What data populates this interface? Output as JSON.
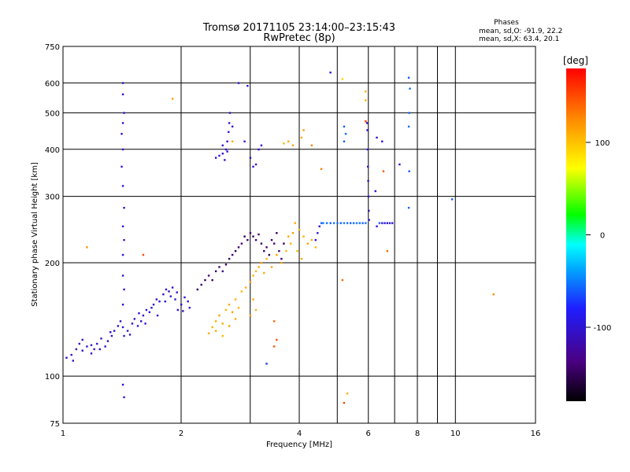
{
  "chart_data": {
    "type": "scatter",
    "title": "Tromsø 20171105 23:14:00–23:15:43",
    "subtitle": "RwPretec (8p)",
    "xlabel": "Frequency [MHz]",
    "ylabel": "Stationary phase Virtual Height [km]",
    "x_scale": "log",
    "y_scale": "log",
    "xlim": [
      1,
      16
    ],
    "ylim": [
      75,
      750
    ],
    "x_ticks": [
      1,
      2,
      4,
      6,
      8,
      10,
      16
    ],
    "x_tick_labels": [
      "1",
      "2",
      "4",
      "6",
      "8",
      "10",
      "16"
    ],
    "x_minor_grid": [
      3,
      5,
      7,
      9
    ],
    "y_ticks": [
      75,
      100,
      200,
      300,
      400,
      500,
      600,
      750
    ],
    "y_tick_labels": [
      "75",
      "100",
      "200",
      "300",
      "400",
      "500",
      "600",
      "750"
    ],
    "grid": true,
    "colorbar": {
      "label": "[deg]",
      "range": [
        -180,
        180
      ],
      "ticks": [
        100,
        0,
        -100
      ],
      "tick_labels": [
        "100",
        "0",
        "-100"
      ]
    },
    "stats": {
      "heading": "Phases",
      "line1": "mean, sd,O:  -91.9, 22.2",
      "line2": "mean, sd,X:  63.4, 20.1"
    },
    "series": [
      {
        "points": [
          [
            1.02,
            112,
            -100
          ],
          [
            1.05,
            114,
            -95
          ],
          [
            1.08,
            118,
            -110
          ],
          [
            1.1,
            122,
            -100
          ],
          [
            1.12,
            125,
            -105
          ],
          [
            1.15,
            120,
            -95
          ],
          [
            1.18,
            115,
            -100
          ],
          [
            1.2,
            118,
            -110
          ],
          [
            1.22,
            122,
            -100
          ],
          [
            1.25,
            126,
            -95
          ],
          [
            1.28,
            120,
            -100
          ],
          [
            1.3,
            124,
            -105
          ],
          [
            1.33,
            128,
            -100
          ],
          [
            1.35,
            132,
            -95
          ],
          [
            1.38,
            136,
            -100
          ],
          [
            1.4,
            140,
            -110
          ],
          [
            1.43,
            128,
            -100
          ],
          [
            1.46,
            132,
            -95
          ],
          [
            1.5,
            138,
            -105
          ],
          [
            1.52,
            142,
            -100
          ],
          [
            1.55,
            136,
            -95
          ],
          [
            1.58,
            140,
            -100
          ],
          [
            1.6,
            145,
            -110
          ],
          [
            1.63,
            150,
            -100
          ],
          [
            1.66,
            148,
            -95
          ],
          [
            1.7,
            155,
            -100
          ],
          [
            1.73,
            160,
            -105
          ],
          [
            1.76,
            158,
            -100
          ],
          [
            1.8,
            165,
            -95
          ],
          [
            1.83,
            170,
            -100
          ],
          [
            1.86,
            168,
            -110
          ],
          [
            1.9,
            172,
            -100
          ],
          [
            1.93,
            160,
            -95
          ],
          [
            1.96,
            150,
            -100
          ],
          [
            2.0,
            155,
            -105
          ],
          [
            2.04,
            162,
            -100
          ],
          [
            2.08,
            158,
            -95
          ],
          [
            1.06,
            110,
            -105
          ],
          [
            1.12,
            117,
            -95
          ],
          [
            1.18,
            121,
            -100
          ],
          [
            1.24,
            118,
            -105
          ],
          [
            1.32,
            131,
            -100
          ],
          [
            1.42,
            135,
            -95
          ],
          [
            1.48,
            129,
            -105
          ],
          [
            1.56,
            147,
            -100
          ],
          [
            1.62,
            138,
            -95
          ],
          [
            1.68,
            152,
            -100
          ],
          [
            1.74,
            145,
            -105
          ],
          [
            1.82,
            158,
            -100
          ],
          [
            1.88,
            163,
            -95
          ],
          [
            1.95,
            167,
            -100
          ],
          [
            2.02,
            149,
            -105
          ],
          [
            2.1,
            152,
            -95
          ]
        ]
      },
      {
        "points": [
          [
            1.42,
            600,
            -105
          ],
          [
            1.42,
            560,
            -100
          ],
          [
            1.43,
            500,
            -95
          ],
          [
            1.42,
            470,
            -100
          ],
          [
            1.41,
            440,
            -105
          ],
          [
            1.42,
            400,
            -100
          ],
          [
            1.41,
            360,
            -95
          ],
          [
            1.42,
            320,
            -100
          ],
          [
            1.43,
            280,
            -105
          ],
          [
            1.42,
            250,
            -100
          ],
          [
            1.43,
            230,
            -110
          ],
          [
            1.42,
            210,
            -100
          ],
          [
            1.42,
            185,
            -95
          ],
          [
            1.43,
            170,
            -100
          ],
          [
            1.42,
            155,
            -105
          ],
          [
            1.42,
            95,
            -100
          ],
          [
            1.43,
            88,
            -95
          ]
        ]
      },
      {
        "points": [
          [
            2.45,
            380,
            -100
          ],
          [
            2.5,
            385,
            -95
          ],
          [
            2.55,
            390,
            -100
          ],
          [
            2.6,
            400,
            -105
          ],
          [
            2.62,
            420,
            -100
          ],
          [
            2.64,
            445,
            -95
          ],
          [
            2.65,
            470,
            -100
          ],
          [
            2.66,
            500,
            -105
          ],
          [
            2.62,
            395,
            -100
          ],
          [
            2.58,
            375,
            -95
          ],
          [
            2.7,
            460,
            -100
          ],
          [
            2.55,
            410,
            -95
          ]
        ]
      },
      {
        "points": [
          [
            2.8,
            600,
            -100
          ],
          [
            2.95,
            590,
            -95
          ],
          [
            2.9,
            420,
            -100
          ],
          [
            3.0,
            380,
            -105
          ],
          [
            3.05,
            360,
            -100
          ],
          [
            3.1,
            365,
            -95
          ],
          [
            3.15,
            400,
            -100
          ],
          [
            3.2,
            410,
            -105
          ]
        ]
      },
      {
        "points": [
          [
            2.2,
            170,
            -150
          ],
          [
            2.25,
            175,
            -145
          ],
          [
            2.3,
            180,
            -150
          ],
          [
            2.35,
            185,
            -140
          ],
          [
            2.4,
            180,
            -145
          ],
          [
            2.45,
            190,
            -150
          ],
          [
            2.5,
            195,
            -145
          ],
          [
            2.55,
            190,
            -140
          ],
          [
            2.6,
            198,
            -150
          ],
          [
            2.65,
            205,
            -145
          ],
          [
            2.7,
            210,
            -140
          ],
          [
            2.75,
            215,
            -150
          ],
          [
            2.8,
            220,
            -145
          ],
          [
            2.85,
            225,
            -140
          ],
          [
            2.9,
            235,
            -150
          ],
          [
            2.95,
            230,
            -145
          ],
          [
            3.0,
            240,
            -140
          ],
          [
            3.05,
            235,
            -150
          ],
          [
            3.1,
            230,
            -145
          ],
          [
            3.15,
            238,
            -140
          ],
          [
            3.2,
            225,
            -150
          ],
          [
            3.25,
            215,
            -145
          ],
          [
            3.3,
            220,
            -140
          ],
          [
            3.35,
            210,
            -150
          ],
          [
            3.4,
            230,
            -145
          ],
          [
            3.45,
            225,
            -140
          ],
          [
            3.5,
            240,
            -150
          ],
          [
            3.55,
            215,
            -145
          ],
          [
            3.6,
            205,
            -140
          ],
          [
            3.65,
            225,
            -150
          ]
        ]
      },
      {
        "points": [
          [
            2.35,
            130,
            110
          ],
          [
            2.4,
            135,
            105
          ],
          [
            2.45,
            140,
            110
          ],
          [
            2.5,
            145,
            115
          ],
          [
            2.55,
            138,
            110
          ],
          [
            2.6,
            150,
            105
          ],
          [
            2.65,
            155,
            110
          ],
          [
            2.7,
            148,
            115
          ],
          [
            2.75,
            142,
            110
          ],
          [
            2.8,
            152,
            105
          ],
          [
            2.45,
            132,
            110
          ],
          [
            2.55,
            128,
            105
          ],
          [
            2.65,
            136,
            115
          ],
          [
            2.75,
            160,
            110
          ],
          [
            2.85,
            168,
            105
          ],
          [
            2.92,
            172,
            110
          ],
          [
            3.0,
            178,
            115
          ],
          [
            3.05,
            185,
            110
          ],
          [
            3.1,
            190,
            105
          ],
          [
            3.15,
            195,
            110
          ],
          [
            3.2,
            200,
            115
          ],
          [
            3.25,
            188,
            110
          ],
          [
            3.3,
            205,
            105
          ],
          [
            3.4,
            195,
            110
          ],
          [
            3.5,
            210,
            115
          ],
          [
            3.6,
            200,
            110
          ],
          [
            3.7,
            215,
            105
          ],
          [
            3.8,
            225,
            110
          ],
          [
            3.85,
            240,
            115
          ],
          [
            3.9,
            255,
            110
          ],
          [
            4.0,
            245,
            105
          ],
          [
            4.1,
            235,
            110
          ],
          [
            4.2,
            225,
            115
          ],
          [
            4.3,
            230,
            110
          ],
          [
            4.4,
            220,
            105
          ],
          [
            3.75,
            235,
            110
          ],
          [
            3.95,
            215,
            105
          ],
          [
            4.05,
            205,
            110
          ],
          [
            3.1,
            150,
            105
          ],
          [
            3.05,
            160,
            110
          ],
          [
            3.0,
            145,
            115
          ],
          [
            2.7,
            420,
            110
          ],
          [
            3.65,
            415,
            105
          ],
          [
            3.75,
            420,
            110
          ],
          [
            3.85,
            410,
            115
          ]
        ]
      },
      {
        "points": [
          [
            4.4,
            230,
            -100
          ],
          [
            4.45,
            240,
            -95
          ],
          [
            4.5,
            250,
            -100
          ],
          [
            4.55,
            255,
            -60
          ],
          [
            4.6,
            255,
            -50
          ],
          [
            4.7,
            255,
            -55
          ],
          [
            4.8,
            255,
            -60
          ],
          [
            4.9,
            255,
            -50
          ],
          [
            5.0,
            255,
            -55
          ],
          [
            5.1,
            255,
            -60
          ],
          [
            5.2,
            255,
            -50
          ],
          [
            5.3,
            255,
            -55
          ],
          [
            5.4,
            255,
            -60
          ],
          [
            5.5,
            255,
            -55
          ],
          [
            5.6,
            255,
            -50
          ],
          [
            5.7,
            255,
            -55
          ],
          [
            5.8,
            255,
            -60
          ],
          [
            5.9,
            255,
            -55
          ],
          [
            6.5,
            255,
            -100
          ],
          [
            6.6,
            255,
            -95
          ],
          [
            6.7,
            255,
            -100
          ],
          [
            6.8,
            255,
            -95
          ],
          [
            6.9,
            255,
            -100
          ],
          [
            6.4,
            255,
            -60
          ],
          [
            6.3,
            250,
            -100
          ]
        ]
      },
      {
        "points": [
          [
            5.95,
            470,
            -110
          ],
          [
            5.96,
            450,
            -100
          ],
          [
            5.97,
            400,
            -95
          ],
          [
            5.98,
            360,
            -100
          ],
          [
            5.99,
            330,
            -105
          ],
          [
            6.0,
            300,
            -100
          ],
          [
            6.01,
            275,
            -110
          ],
          [
            6.02,
            260,
            -100
          ],
          [
            6.3,
            430,
            -105
          ],
          [
            6.25,
            310,
            -100
          ],
          [
            6.5,
            420,
            -95
          ],
          [
            4.8,
            640,
            -100
          ],
          [
            5.15,
            615,
            90
          ],
          [
            5.2,
            460,
            -60
          ],
          [
            5.25,
            440,
            -55
          ],
          [
            5.2,
            420,
            -60
          ],
          [
            7.6,
            620,
            -60
          ],
          [
            7.65,
            580,
            -55
          ],
          [
            7.62,
            500,
            -60
          ],
          [
            7.6,
            460,
            -55
          ],
          [
            7.62,
            350,
            -60
          ],
          [
            7.6,
            280,
            -55
          ],
          [
            9.8,
            295,
            -60
          ],
          [
            5.9,
            570,
            110
          ],
          [
            5.9,
            540,
            110
          ]
        ]
      },
      {
        "points": [
          [
            1.15,
            220,
            120
          ],
          [
            1.6,
            210,
            150
          ],
          [
            1.9,
            545,
            115
          ],
          [
            3.45,
            140,
            140
          ],
          [
            3.5,
            125,
            150
          ],
          [
            3.45,
            120,
            145
          ],
          [
            4.1,
            450,
            115
          ],
          [
            4.55,
            355,
            130
          ],
          [
            5.15,
            180,
            140
          ],
          [
            5.2,
            85,
            150
          ],
          [
            5.3,
            90,
            110
          ],
          [
            5.9,
            475,
            160
          ],
          [
            6.55,
            350,
            145
          ],
          [
            6.7,
            215,
            140
          ],
          [
            7.2,
            365,
            -100
          ],
          [
            12.5,
            165,
            125
          ],
          [
            3.3,
            108,
            -70
          ],
          [
            4.05,
            430,
            110
          ],
          [
            4.3,
            410,
            130
          ]
        ]
      }
    ]
  }
}
